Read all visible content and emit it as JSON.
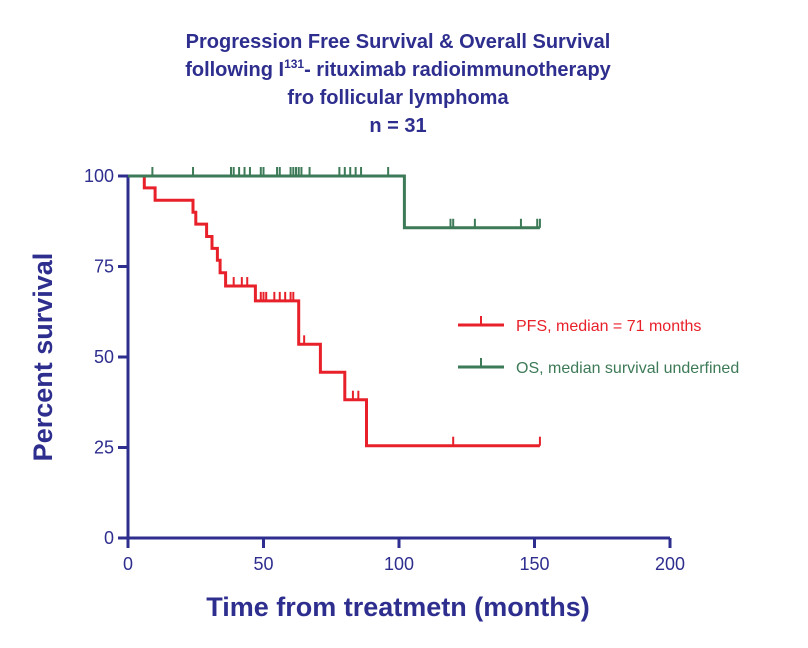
{
  "chart_data": {
    "type": "line",
    "title_lines": [
      "Progression Free Survival & Overall Survival",
      "following I",
      "131",
      "- rituximab radioimmunotherapy",
      "fro follicular lymphoma",
      "n = 31"
    ],
    "xlabel": "Time from treatmetn (months)",
    "ylabel": "Percent survival",
    "xlim": [
      0,
      200
    ],
    "ylim": [
      0,
      100
    ],
    "x_ticks": [
      "0",
      "50",
      "100",
      "150",
      "200"
    ],
    "y_ticks": [
      "0",
      "25",
      "50",
      "75",
      "100"
    ],
    "legend_position": "right",
    "grid": false,
    "colors": {
      "axis": "#2e2e8f",
      "pfs": "#e8202a",
      "os": "#3d7a57"
    },
    "series": [
      {
        "name": "PFS, median = 71 months",
        "color": "#e8202a",
        "steps": [
          [
            0,
            100
          ],
          [
            6,
            100
          ],
          [
            6,
            96.7
          ],
          [
            10,
            96.7
          ],
          [
            10,
            93.3
          ],
          [
            24,
            93.3
          ],
          [
            24,
            90
          ],
          [
            25,
            90
          ],
          [
            25,
            86.7
          ],
          [
            29,
            86.7
          ],
          [
            29,
            83.3
          ],
          [
            31,
            83.3
          ],
          [
            31,
            80
          ],
          [
            33,
            80
          ],
          [
            33,
            76.7
          ],
          [
            34,
            76.7
          ],
          [
            34,
            73.3
          ],
          [
            36,
            73.3
          ],
          [
            36,
            69.6
          ],
          [
            47,
            69.6
          ],
          [
            47,
            65.5
          ],
          [
            63,
            65.5
          ],
          [
            63,
            53.5
          ],
          [
            71,
            53.5
          ],
          [
            71,
            45.8
          ],
          [
            80,
            45.8
          ],
          [
            80,
            38.2
          ],
          [
            88,
            38.2
          ],
          [
            88,
            25.5
          ],
          [
            152,
            25.5
          ]
        ],
        "censored": [
          [
            39,
            69.6
          ],
          [
            42,
            69.6
          ],
          [
            44,
            69.6
          ],
          [
            49,
            65.5
          ],
          [
            50,
            65.5
          ],
          [
            51,
            65.5
          ],
          [
            54,
            65.5
          ],
          [
            56,
            65.5
          ],
          [
            58,
            65.5
          ],
          [
            60,
            65.5
          ],
          [
            61,
            65.5
          ],
          [
            65,
            53.5
          ],
          [
            83,
            38.2
          ],
          [
            85,
            38.2
          ],
          [
            120,
            25.5
          ],
          [
            152,
            25.5
          ]
        ]
      },
      {
        "name": "OS, median survival underfined",
        "color": "#3d7a57",
        "steps": [
          [
            0,
            100
          ],
          [
            102,
            100
          ],
          [
            102,
            85.7
          ],
          [
            152,
            85.7
          ]
        ],
        "censored": [
          [
            9,
            100
          ],
          [
            24,
            100
          ],
          [
            38,
            100
          ],
          [
            39,
            100
          ],
          [
            41,
            100
          ],
          [
            43,
            100
          ],
          [
            45,
            100
          ],
          [
            49,
            100
          ],
          [
            50,
            100
          ],
          [
            55,
            100
          ],
          [
            56,
            100
          ],
          [
            60,
            100
          ],
          [
            61,
            100
          ],
          [
            62,
            100
          ],
          [
            63,
            100
          ],
          [
            64,
            100
          ],
          [
            67,
            100
          ],
          [
            78,
            100
          ],
          [
            80,
            100
          ],
          [
            82,
            100
          ],
          [
            84,
            100
          ],
          [
            86,
            100
          ],
          [
            96,
            100
          ],
          [
            119,
            85.7
          ],
          [
            120,
            85.7
          ],
          [
            128,
            85.7
          ],
          [
            145,
            85.7
          ],
          [
            151,
            85.7
          ],
          [
            152,
            85.7
          ]
        ]
      }
    ]
  }
}
